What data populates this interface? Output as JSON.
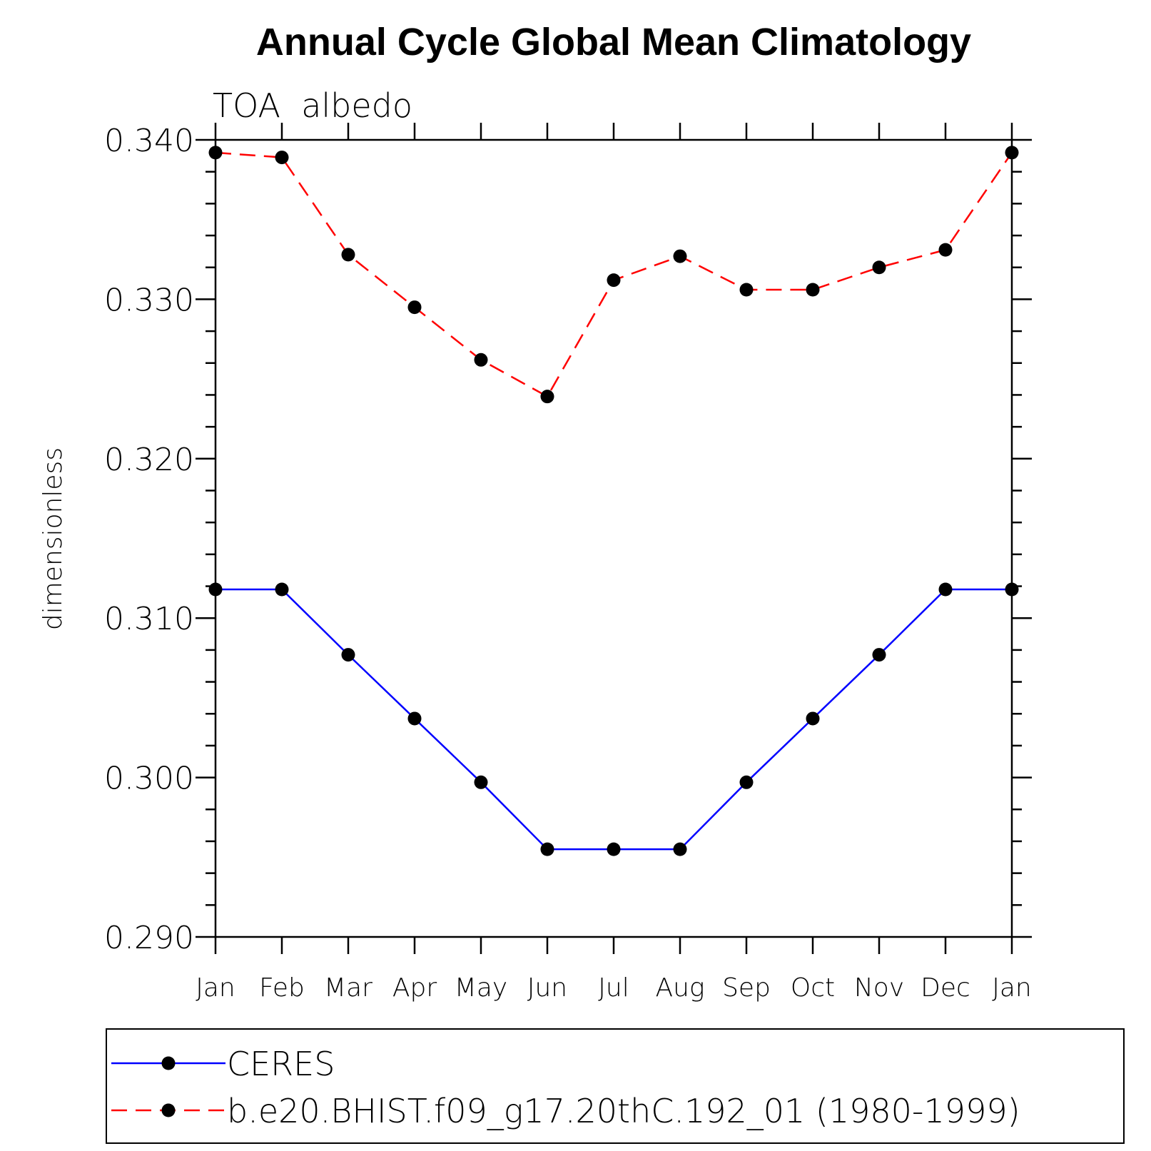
{
  "chart_data": {
    "type": "line",
    "title": "Annual Cycle Global Mean Climatology",
    "subtitle": "TOA  albedo",
    "xlabel": "",
    "ylabel": "dimensionless",
    "categories": [
      "Jan",
      "Feb",
      "Mar",
      "Apr",
      "May",
      "Jun",
      "Jul",
      "Aug",
      "Sep",
      "Oct",
      "Nov",
      "Dec",
      "Jan"
    ],
    "ylim": [
      0.29,
      0.34
    ],
    "yticks": [
      "0.290",
      "0.300",
      "0.310",
      "0.320",
      "0.330",
      "0.340"
    ],
    "ytick_values": [
      0.29,
      0.3,
      0.31,
      0.32,
      0.33,
      0.34
    ],
    "y_minor_step": 0.002,
    "legend_position": "bottom",
    "series": [
      {
        "name": "CERES",
        "color": "#0000ff",
        "dashed": false,
        "marker_color": "#000000",
        "values": [
          0.3118,
          0.3118,
          0.3077,
          0.3037,
          0.2997,
          0.2955,
          0.2955,
          0.2955,
          0.2997,
          0.3037,
          0.3077,
          0.3118,
          0.3118
        ]
      },
      {
        "name": "b.e20.BHIST.f09_g17.20thC.192_01 (1980-1999)",
        "color": "#ff0000",
        "dashed": true,
        "marker_color": "#000000",
        "values": [
          0.3392,
          0.3389,
          0.3328,
          0.3295,
          0.3262,
          0.3239,
          0.3312,
          0.3327,
          0.3306,
          0.3306,
          0.332,
          0.3331,
          0.3392
        ]
      }
    ]
  }
}
